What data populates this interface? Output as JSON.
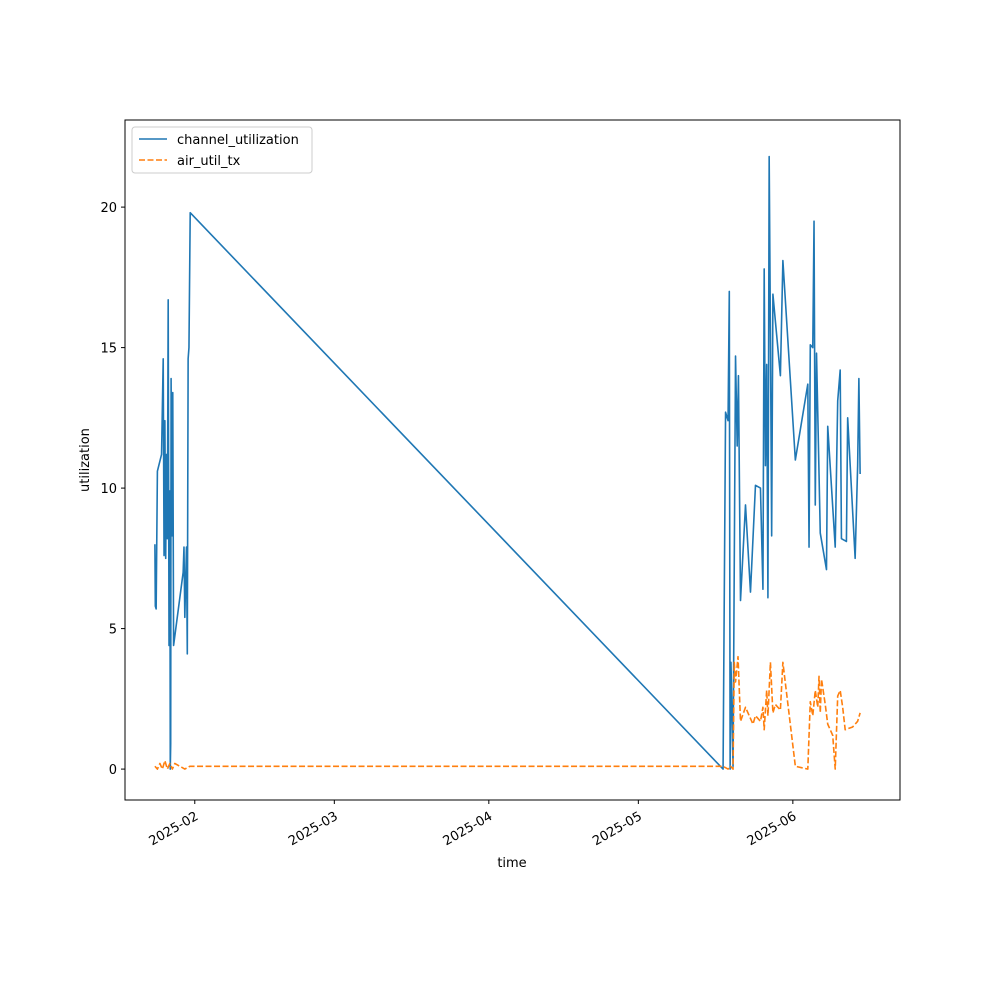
{
  "chart_data": {
    "type": "line",
    "title": "",
    "xlabel": "time",
    "ylabel": "utilization",
    "xlim": [
      "2025-01-18T00:00",
      "2025-06-22T12:00"
    ],
    "ylim": [
      -1.1,
      23.1
    ],
    "grid": false,
    "legend_position": "upper-left",
    "x_ticks": [
      {
        "date": "2025-02-01",
        "label": "2025-02"
      },
      {
        "date": "2025-03-01",
        "label": "2025-03"
      },
      {
        "date": "2025-04-01",
        "label": "2025-04"
      },
      {
        "date": "2025-05-01",
        "label": "2025-05"
      },
      {
        "date": "2025-06-01",
        "label": "2025-06"
      }
    ],
    "y_ticks": [
      0,
      5,
      10,
      15,
      20
    ],
    "series": [
      {
        "name": "channel_utilization",
        "color": "#1f77b4",
        "style": "solid",
        "points": [
          [
            "2025-01-24T00:00",
            8.0
          ],
          [
            "2025-01-24T02:00",
            5.8
          ],
          [
            "2025-01-24T06:00",
            5.7
          ],
          [
            "2025-01-24T12:00",
            10.6
          ],
          [
            "2025-01-25T08:00",
            11.2
          ],
          [
            "2025-01-25T16:00",
            14.6
          ],
          [
            "2025-01-25T20:00",
            7.6
          ],
          [
            "2025-01-26T00:00",
            12.4
          ],
          [
            "2025-01-26T04:00",
            7.5
          ],
          [
            "2025-01-26T08:00",
            11.2
          ],
          [
            "2025-01-26T12:00",
            8.2
          ],
          [
            "2025-01-26T16:00",
            16.7
          ],
          [
            "2025-01-26T20:00",
            4.4
          ],
          [
            "2025-01-27T00:00",
            9.9
          ],
          [
            "2025-01-27T02:00",
            0.0
          ],
          [
            "2025-01-27T04:00",
            0.9
          ],
          [
            "2025-01-27T06:00",
            13.9
          ],
          [
            "2025-01-27T10:00",
            8.3
          ],
          [
            "2025-01-27T14:00",
            13.4
          ],
          [
            "2025-01-27T18:00",
            4.4
          ],
          [
            "2025-01-29T16:00",
            7.0
          ],
          [
            "2025-01-29T20:00",
            7.9
          ],
          [
            "2025-01-30T00:00",
            5.4
          ],
          [
            "2025-01-30T08:00",
            7.9
          ],
          [
            "2025-01-30T12:00",
            4.1
          ],
          [
            "2025-01-30T16:00",
            14.6
          ],
          [
            "2025-01-30T20:00",
            15.0
          ],
          [
            "2025-01-31T02:00",
            19.8
          ],
          [
            "2025-05-18T00:00",
            0.0
          ],
          [
            "2025-05-18T12:00",
            12.7
          ],
          [
            "2025-05-19T00:00",
            12.4
          ],
          [
            "2025-05-19T06:00",
            17.0
          ],
          [
            "2025-05-19T10:00",
            0.0
          ],
          [
            "2025-05-19T14:00",
            3.8
          ],
          [
            "2025-05-20T00:00",
            0.1
          ],
          [
            "2025-05-20T12:00",
            14.7
          ],
          [
            "2025-05-20T20:00",
            11.5
          ],
          [
            "2025-05-21T02:00",
            14.0
          ],
          [
            "2025-05-21T12:00",
            6.0
          ],
          [
            "2025-05-22T12:00",
            9.4
          ],
          [
            "2025-05-23T12:00",
            6.3
          ],
          [
            "2025-05-24T12:00",
            10.1
          ],
          [
            "2025-05-25T12:00",
            10.0
          ],
          [
            "2025-05-26T00:00",
            6.4
          ],
          [
            "2025-05-26T06:00",
            17.8
          ],
          [
            "2025-05-26T12:00",
            10.8
          ],
          [
            "2025-05-26T18:00",
            14.4
          ],
          [
            "2025-05-27T00:00",
            6.1
          ],
          [
            "2025-05-27T06:00",
            21.8
          ],
          [
            "2025-05-27T12:00",
            15.5
          ],
          [
            "2025-05-27T18:00",
            8.3
          ],
          [
            "2025-05-28T00:00",
            16.9
          ],
          [
            "2025-05-29T12:00",
            14.0
          ],
          [
            "2025-05-30T00:00",
            18.1
          ],
          [
            "2025-06-01T12:00",
            11.0
          ],
          [
            "2025-06-04T00:00",
            13.7
          ],
          [
            "2025-06-04T06:00",
            7.9
          ],
          [
            "2025-06-04T12:00",
            15.1
          ],
          [
            "2025-06-05T00:00",
            15.0
          ],
          [
            "2025-06-05T06:00",
            19.5
          ],
          [
            "2025-06-05T12:00",
            9.4
          ],
          [
            "2025-06-05T18:00",
            14.8
          ],
          [
            "2025-06-06T12:00",
            8.4
          ],
          [
            "2025-06-07T18:00",
            7.1
          ],
          [
            "2025-06-08T00:00",
            12.2
          ],
          [
            "2025-06-09T12:00",
            7.9
          ],
          [
            "2025-06-10T00:00",
            13.1
          ],
          [
            "2025-06-10T12:00",
            14.2
          ],
          [
            "2025-06-10T18:00",
            8.2
          ],
          [
            "2025-06-11T18:00",
            8.1
          ],
          [
            "2025-06-12T00:00",
            12.5
          ],
          [
            "2025-06-13T12:00",
            7.5
          ],
          [
            "2025-06-14T00:00",
            10.8
          ],
          [
            "2025-06-14T06:00",
            13.9
          ],
          [
            "2025-06-14T12:00",
            10.5
          ]
        ]
      },
      {
        "name": "air_util_tx",
        "color": "#ff7f0e",
        "style": "dashed",
        "points": [
          [
            "2025-01-24T00:00",
            0.1
          ],
          [
            "2025-01-24T12:00",
            0.0
          ],
          [
            "2025-01-25T00:00",
            0.2
          ],
          [
            "2025-01-25T12:00",
            0.0
          ],
          [
            "2025-01-26T00:00",
            0.3
          ],
          [
            "2025-01-26T12:00",
            0.0
          ],
          [
            "2025-01-27T00:00",
            0.2
          ],
          [
            "2025-01-27T12:00",
            0.0
          ],
          [
            "2025-01-28T00:00",
            0.2
          ],
          [
            "2025-01-29T00:00",
            0.1
          ],
          [
            "2025-01-30T00:00",
            0.0
          ],
          [
            "2025-01-31T00:00",
            0.1
          ],
          [
            "2025-05-18T00:00",
            0.1
          ],
          [
            "2025-05-19T00:00",
            0.0
          ],
          [
            "2025-05-19T12:00",
            0.1
          ],
          [
            "2025-05-20T00:00",
            0.0
          ],
          [
            "2025-05-20T06:00",
            3.8
          ],
          [
            "2025-05-20T12:00",
            3.1
          ],
          [
            "2025-05-21T00:00",
            4.0
          ],
          [
            "2025-05-21T12:00",
            1.7
          ],
          [
            "2025-05-22T12:00",
            2.2
          ],
          [
            "2025-05-24T00:00",
            1.6
          ],
          [
            "2025-05-24T12:00",
            1.9
          ],
          [
            "2025-05-25T12:00",
            1.7
          ],
          [
            "2025-05-26T00:00",
            2.2
          ],
          [
            "2025-05-26T06:00",
            1.4
          ],
          [
            "2025-05-26T18:00",
            2.8
          ],
          [
            "2025-05-27T00:00",
            1.9
          ],
          [
            "2025-05-27T12:00",
            3.8
          ],
          [
            "2025-05-28T00:00",
            2.0
          ],
          [
            "2025-05-28T12:00",
            2.3
          ],
          [
            "2025-05-29T12:00",
            2.1
          ],
          [
            "2025-05-30T00:00",
            3.8
          ],
          [
            "2025-06-01T12:00",
            0.1
          ],
          [
            "2025-06-04T00:00",
            0.0
          ],
          [
            "2025-06-04T12:00",
            2.4
          ],
          [
            "2025-06-05T00:00",
            1.9
          ],
          [
            "2025-06-05T12:00",
            2.8
          ],
          [
            "2025-06-06T00:00",
            2.2
          ],
          [
            "2025-06-06T06:00",
            3.3
          ],
          [
            "2025-06-06T12:00",
            2.0
          ],
          [
            "2025-06-06T18:00",
            3.2
          ],
          [
            "2025-06-07T12:00",
            2.3
          ],
          [
            "2025-06-08T00:00",
            1.6
          ],
          [
            "2025-06-09T00:00",
            1.2
          ],
          [
            "2025-06-09T12:00",
            0.0
          ],
          [
            "2025-06-10T00:00",
            2.6
          ],
          [
            "2025-06-10T12:00",
            2.8
          ],
          [
            "2025-06-11T00:00",
            2.2
          ],
          [
            "2025-06-11T12:00",
            1.4
          ],
          [
            "2025-06-13T00:00",
            1.5
          ],
          [
            "2025-06-14T00:00",
            1.7
          ],
          [
            "2025-06-14T12:00",
            2.0
          ]
        ]
      }
    ]
  }
}
